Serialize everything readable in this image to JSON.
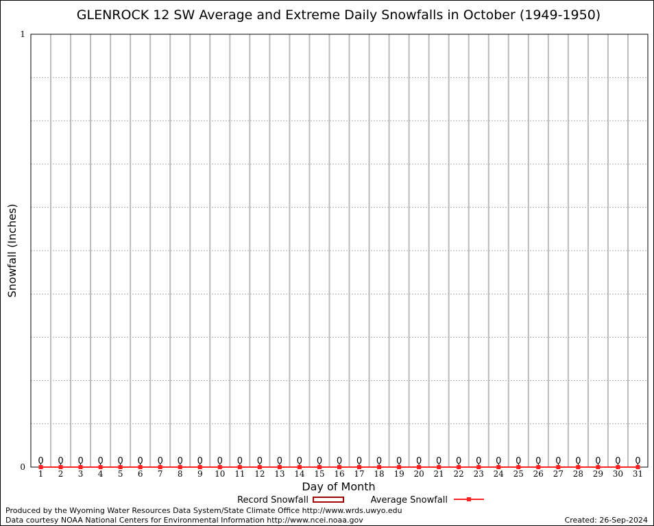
{
  "chart_data": {
    "type": "bar",
    "title": "GLENROCK 12 SW Average and Extreme Daily Snowfalls in October (1949-1950)",
    "xlabel": "Day of Month",
    "ylabel": "Snowfall (Inches)",
    "ylim": [
      0,
      1
    ],
    "yticks": [
      "0",
      "1"
    ],
    "grid": true,
    "categories": [
      "1",
      "2",
      "3",
      "4",
      "5",
      "6",
      "7",
      "8",
      "9",
      "10",
      "11",
      "12",
      "13",
      "14",
      "15",
      "16",
      "17",
      "18",
      "19",
      "20",
      "21",
      "22",
      "23",
      "24",
      "25",
      "26",
      "27",
      "28",
      "29",
      "30",
      "31"
    ],
    "series": [
      {
        "name": "Record Snowfall",
        "type": "bar",
        "color": "#a00000",
        "values": [
          0,
          0,
          0,
          0,
          0,
          0,
          0,
          0,
          0,
          0,
          0,
          0,
          0,
          0,
          0,
          0,
          0,
          0,
          0,
          0,
          0,
          0,
          0,
          0,
          0,
          0,
          0,
          0,
          0,
          0,
          0
        ]
      },
      {
        "name": "Average Snowfall",
        "type": "line",
        "color": "#ff2020",
        "values": [
          0,
          0,
          0,
          0,
          0,
          0,
          0,
          0,
          0,
          0,
          0,
          0,
          0,
          0,
          0,
          0,
          0,
          0,
          0,
          0,
          0,
          0,
          0,
          0,
          0,
          0,
          0,
          0,
          0,
          0,
          0
        ]
      }
    ],
    "data_labels": [
      "0",
      "0",
      "0",
      "0",
      "0",
      "0",
      "0",
      "0",
      "0",
      "0",
      "0",
      "0",
      "0",
      "0",
      "0",
      "0",
      "0",
      "0",
      "0",
      "0",
      "0",
      "0",
      "0",
      "0",
      "0",
      "0",
      "0",
      "0",
      "0",
      "0",
      "0"
    ],
    "legend": "bottom"
  },
  "footer": {
    "produced": "Produced by the Wyoming Water Resources Data System/State Climate Office http://www.wrds.uwyo.edu",
    "courtesy": "Data courtesy NOAA National Centers for Environmental Information http://www.ncei.noaa.gov",
    "created": "Created: 26-Sep-2024"
  }
}
